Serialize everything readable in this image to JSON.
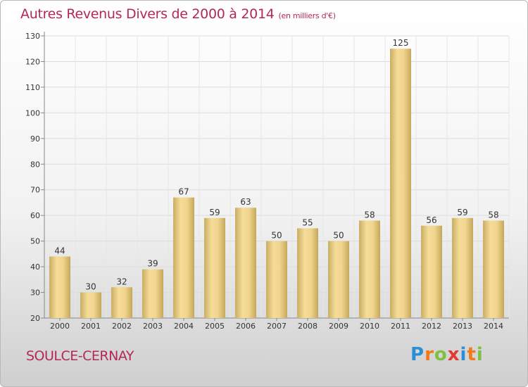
{
  "title": "Autres Revenus Divers de 2000 à 2014",
  "unit": "(en milliers d'€)",
  "location": "SOULCE-CERNAY",
  "brand": {
    "letters": [
      "P",
      "r",
      "o",
      "x",
      "i",
      "t",
      "i"
    ],
    "colors": [
      "#2b8fd6",
      "#f07a1c",
      "#7cc142",
      "#e23a2f",
      "#2b8fd6",
      "#f07a1c",
      "#7cc142"
    ]
  },
  "colors": {
    "title": "#b3285a",
    "bar_light": "#f8e0a0",
    "bar_dark": "#c8ad62"
  },
  "chart_data": {
    "type": "bar",
    "categories": [
      "2000",
      "2001",
      "2002",
      "2003",
      "2004",
      "2005",
      "2006",
      "2007",
      "2008",
      "2009",
      "2010",
      "2011",
      "2012",
      "2013",
      "2014"
    ],
    "values": [
      44,
      30,
      32,
      39,
      67,
      59,
      63,
      50,
      55,
      50,
      58,
      125,
      56,
      59,
      58
    ],
    "ylim": [
      20,
      130
    ],
    "yticks": [
      20,
      30,
      40,
      50,
      60,
      70,
      80,
      90,
      100,
      110,
      120,
      130
    ],
    "grid": true
  }
}
